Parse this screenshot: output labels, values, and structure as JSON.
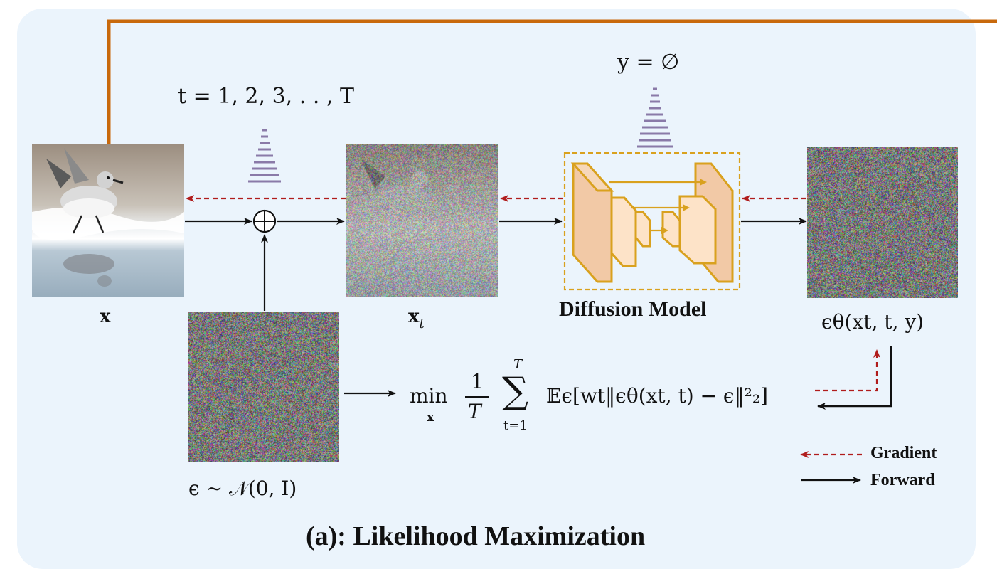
{
  "title": "(a): Likelihood Maximization",
  "labels": {
    "x": "x",
    "xt": "x",
    "xt_sub": "t",
    "diffusion_model": "Diffusion Model",
    "timesteps": "t = 1, 2, 3, . . , T",
    "condition": "y = ∅",
    "noise": "ϵ ∼ 𝒩(0, I)",
    "prediction": "ϵθ(xt, t, y)"
  },
  "objective": {
    "min": "min",
    "min_sub": "x",
    "frac_num": "1",
    "frac_den": "T",
    "sum_top": "T",
    "sum_bottom": "t=1",
    "body": "𝔼ϵ[wt‖ϵθ(xt, t) − ϵ‖²₂]"
  },
  "legend": {
    "gradient": "Gradient",
    "forward": "Forward"
  },
  "colors": {
    "panel_bg": "#ebf4fc",
    "orange_line": "#c8690c",
    "gradient_arrow": "#b01c1c",
    "forward_arrow": "#111111",
    "unet_stroke": "#d9a11e",
    "unet_fill_dark": "#f2c9a6",
    "unet_fill_light": "#fde3c8",
    "pyramid": "#8a7aa8"
  },
  "icons": {
    "sum_node": "circled-plus-icon",
    "schedule": "striped-triangle-icon",
    "network": "unet-icon"
  }
}
